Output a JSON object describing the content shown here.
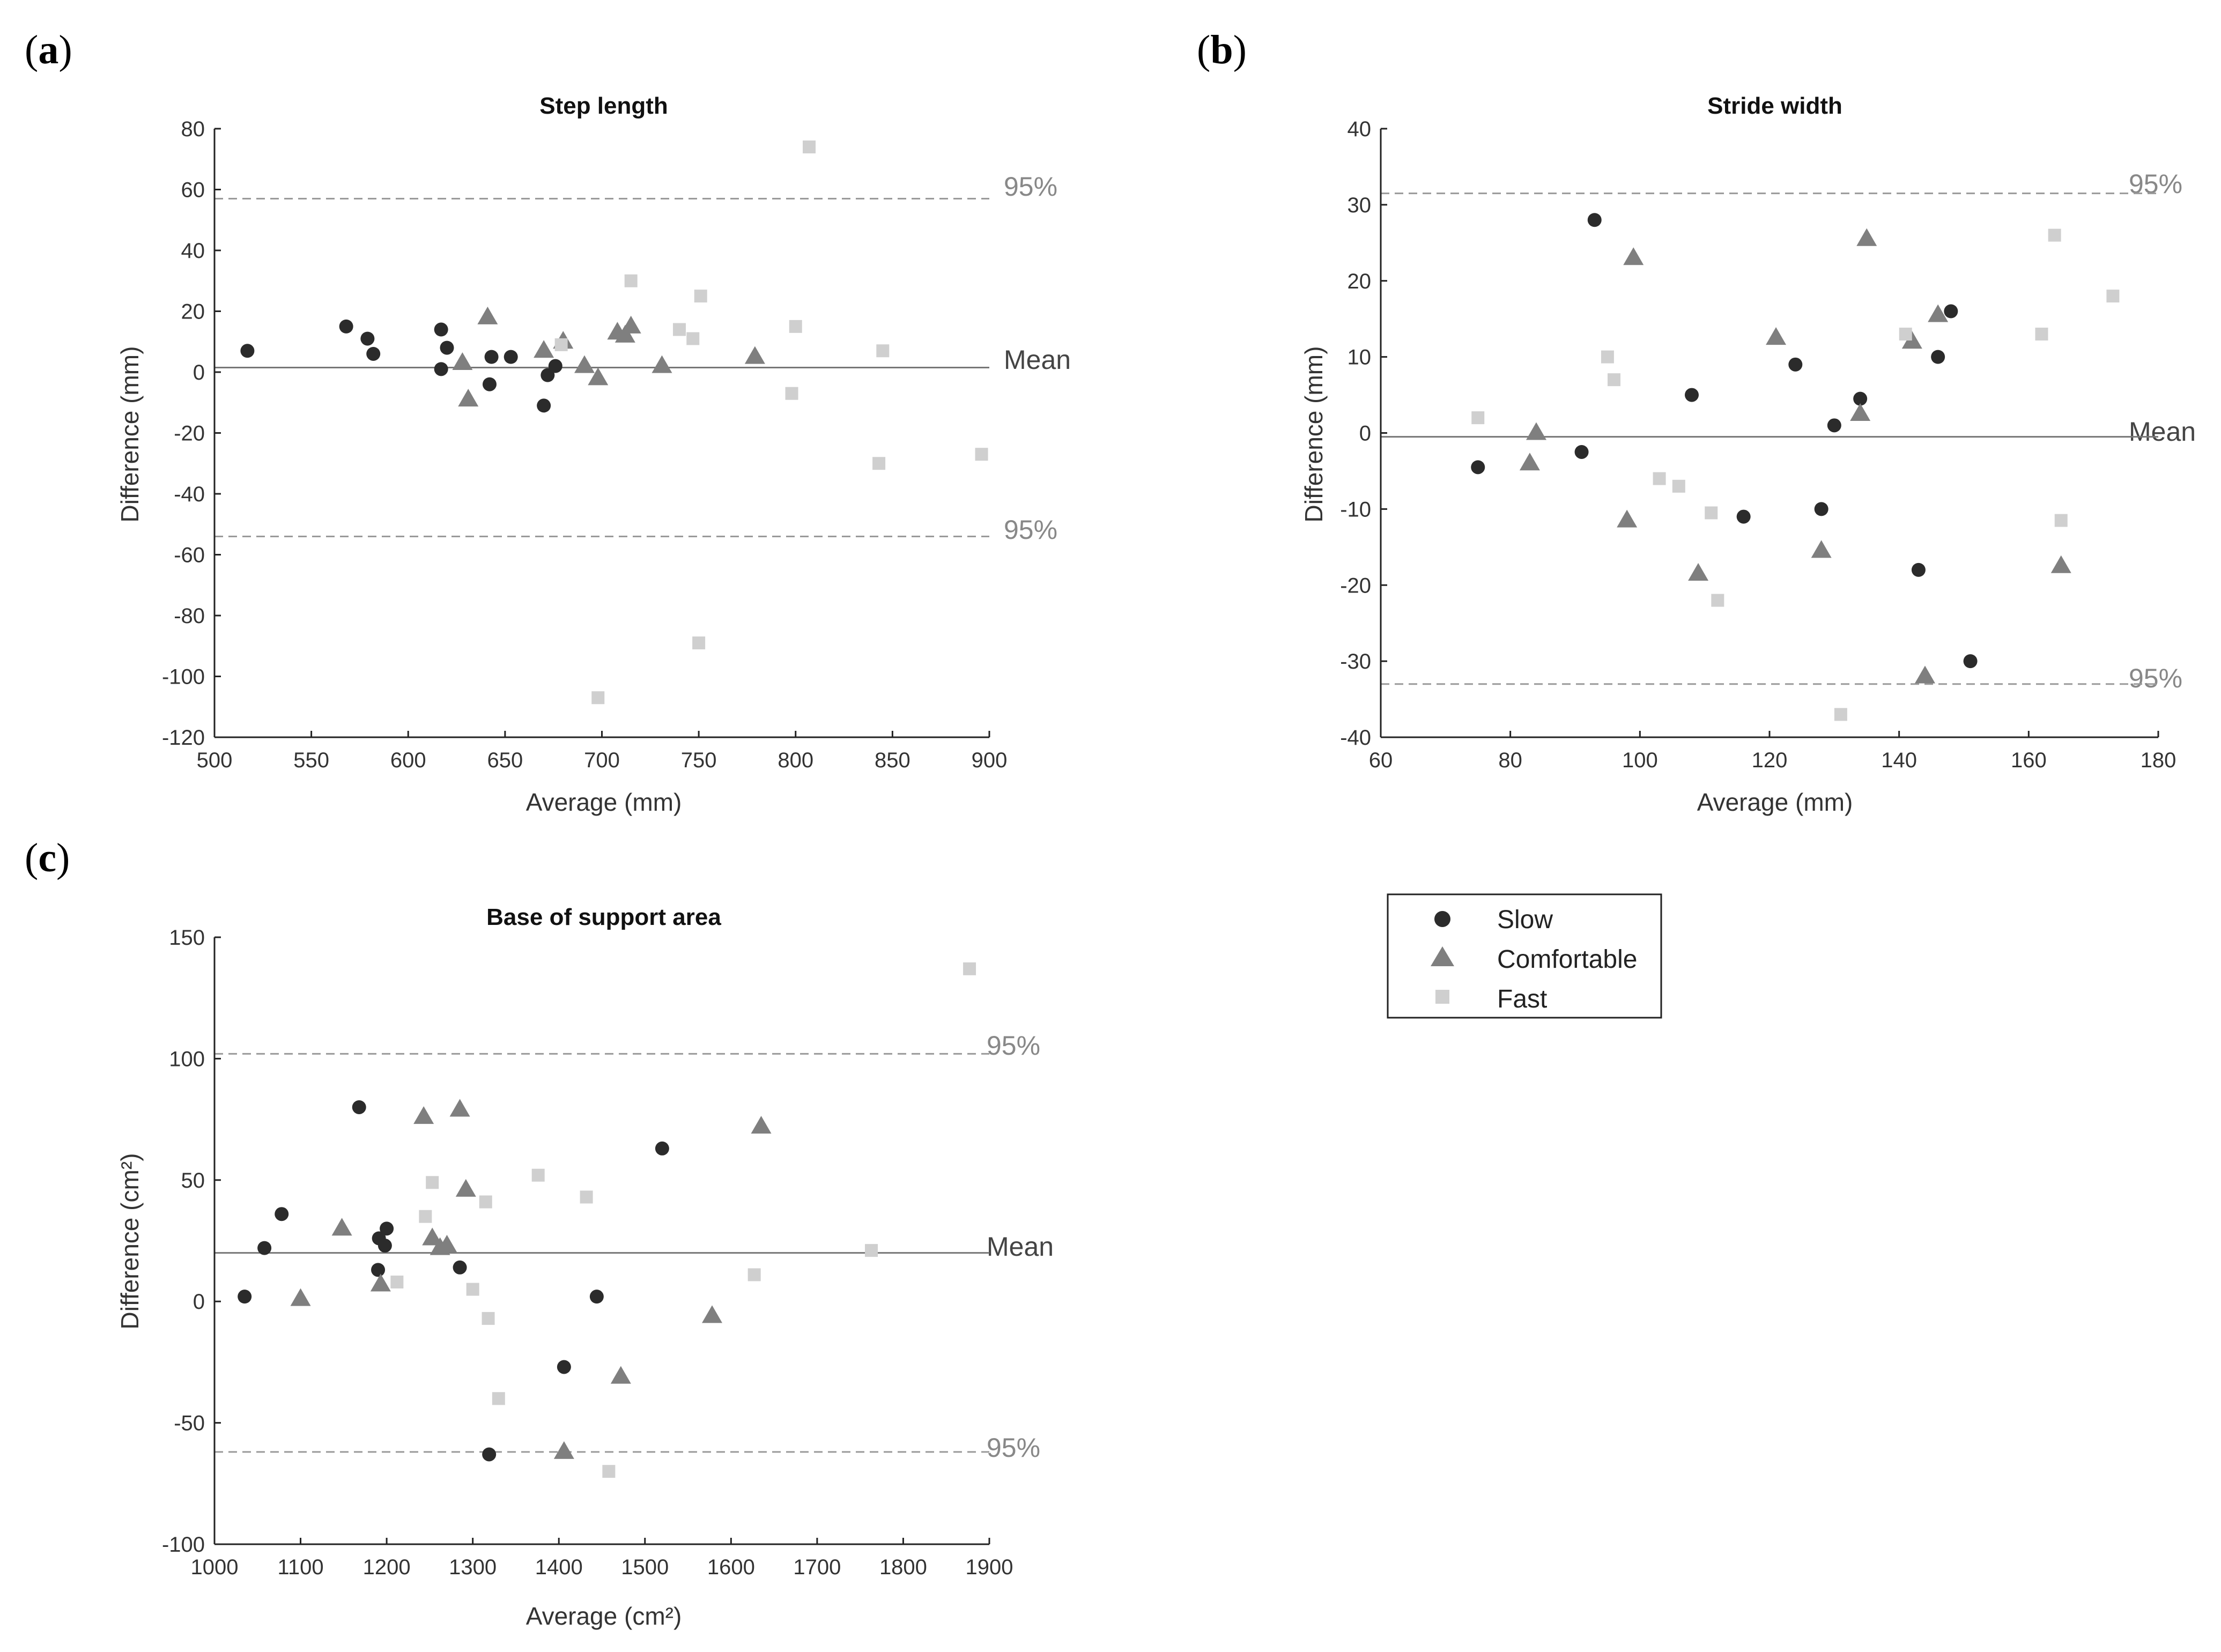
{
  "figure": {
    "panels": [
      {
        "open": "(",
        "letter": "a",
        "close": ")"
      },
      {
        "open": "(",
        "letter": "b",
        "close": ")"
      },
      {
        "open": "(",
        "letter": "c",
        "close": ")"
      }
    ]
  },
  "legend": {
    "items": [
      {
        "label": "Slow",
        "marker": "circle",
        "color": "#2b2b2b"
      },
      {
        "label": "Comfortable",
        "marker": "triangle",
        "color": "#7f7f7f"
      },
      {
        "label": "Fast",
        "marker": "square",
        "color": "#cfcfcf"
      }
    ]
  },
  "colors": {
    "mean_line": "#777777",
    "limit_line": "#9a9a9a",
    "axis": "#222222"
  },
  "chart_data": [
    {
      "type": "scatter",
      "panel": "a",
      "title": "Step length",
      "xlabel": "Average (mm)",
      "ylabel": "Difference (mm)",
      "xlim": [
        500,
        900
      ],
      "ylim": [
        -120,
        80
      ],
      "xticks": [
        500,
        550,
        600,
        650,
        700,
        750,
        800,
        850,
        900
      ],
      "yticks": [
        -120,
        -100,
        -80,
        -60,
        -40,
        -20,
        0,
        20,
        40,
        60,
        80
      ],
      "mean": 1.5,
      "upper_limit": 57,
      "lower_limit": -54,
      "mean_label": "Mean",
      "upper_label": "95%",
      "lower_label": "95%",
      "series": [
        {
          "name": "Slow",
          "points": [
            [
              517,
              7
            ],
            [
              568,
              15
            ],
            [
              579,
              11
            ],
            [
              582,
              6
            ],
            [
              617,
              14
            ],
            [
              617,
              1
            ],
            [
              620,
              8
            ],
            [
              642,
              -4
            ],
            [
              643,
              5
            ],
            [
              653,
              5
            ],
            [
              670,
              -11
            ],
            [
              672,
              -1
            ],
            [
              676,
              2
            ]
          ]
        },
        {
          "name": "Comfortable",
          "points": [
            [
              628,
              3
            ],
            [
              631,
              -9
            ],
            [
              641,
              18
            ],
            [
              670,
              7
            ],
            [
              680,
              10
            ],
            [
              691,
              2
            ],
            [
              698,
              -2
            ],
            [
              708,
              13
            ],
            [
              712,
              12
            ],
            [
              715,
              15
            ],
            [
              731,
              2
            ],
            [
              779,
              5
            ]
          ]
        },
        {
          "name": "Fast",
          "points": [
            [
              679,
              9
            ],
            [
              698,
              -107
            ],
            [
              715,
              30
            ],
            [
              740,
              14
            ],
            [
              747,
              11
            ],
            [
              750,
              -89
            ],
            [
              751,
              25
            ],
            [
              798,
              -7
            ],
            [
              800,
              15
            ],
            [
              807,
              74
            ],
            [
              843,
              -30
            ],
            [
              845,
              7
            ],
            [
              896,
              -27
            ]
          ]
        }
      ]
    },
    {
      "type": "scatter",
      "panel": "b",
      "title": "Stride width",
      "xlabel": "Average (mm)",
      "ylabel": "Difference (mm)",
      "xlim": [
        60,
        180
      ],
      "ylim": [
        -40,
        40
      ],
      "xticks": [
        60,
        80,
        100,
        120,
        140,
        160,
        180
      ],
      "yticks": [
        -40,
        -30,
        -20,
        -10,
        0,
        10,
        20,
        30,
        40
      ],
      "mean": -0.5,
      "upper_limit": 31.5,
      "lower_limit": -33,
      "mean_label": "Mean",
      "upper_label": "95%",
      "lower_label": "95%",
      "series": [
        {
          "name": "Slow",
          "points": [
            [
              75,
              -4.5
            ],
            [
              91,
              -2.5
            ],
            [
              93,
              28
            ],
            [
              108,
              5
            ],
            [
              116,
              -11
            ],
            [
              124,
              9
            ],
            [
              128,
              -10
            ],
            [
              130,
              1
            ],
            [
              134,
              4.5
            ],
            [
              143,
              -18
            ],
            [
              146,
              10
            ],
            [
              148,
              16
            ],
            [
              151,
              -30
            ]
          ]
        },
        {
          "name": "Comfortable",
          "points": [
            [
              83,
              -4
            ],
            [
              84,
              0
            ],
            [
              98,
              -11.5
            ],
            [
              99,
              23
            ],
            [
              109,
              -18.5
            ],
            [
              121,
              12.5
            ],
            [
              128,
              -15.5
            ],
            [
              134,
              2.5
            ],
            [
              135,
              25.5
            ],
            [
              142,
              12
            ],
            [
              144,
              -32
            ],
            [
              146,
              15.5
            ],
            [
              165,
              -17.5
            ]
          ]
        },
        {
          "name": "Fast",
          "points": [
            [
              75,
              2
            ],
            [
              95,
              10
            ],
            [
              96,
              7
            ],
            [
              103,
              -6
            ],
            [
              106,
              -7
            ],
            [
              111,
              -10.5
            ],
            [
              112,
              -22
            ],
            [
              131,
              -37
            ],
            [
              141,
              13
            ],
            [
              162,
              13
            ],
            [
              164,
              26
            ],
            [
              165,
              -11.5
            ],
            [
              173,
              18
            ]
          ]
        }
      ]
    },
    {
      "type": "scatter",
      "panel": "c",
      "title": "Base of support area",
      "xlabel": "Average (cm²)",
      "ylabel": "Difference (cm²)",
      "xlim": [
        1000,
        1900
      ],
      "ylim": [
        -100,
        150
      ],
      "xticks": [
        1000,
        1100,
        1200,
        1300,
        1400,
        1500,
        1600,
        1700,
        1800,
        1900
      ],
      "yticks": [
        -100,
        -50,
        0,
        50,
        100,
        150
      ],
      "mean": 20,
      "upper_limit": 102,
      "lower_limit": -62,
      "mean_label": "Mean",
      "upper_label": "95%",
      "lower_label": "95%",
      "series": [
        {
          "name": "Slow",
          "points": [
            [
              1035,
              2
            ],
            [
              1058,
              22
            ],
            [
              1078,
              36
            ],
            [
              1168,
              80
            ],
            [
              1190,
              13
            ],
            [
              1191,
              26
            ],
            [
              1198,
              23
            ],
            [
              1200,
              30
            ],
            [
              1285,
              14
            ],
            [
              1319,
              -63
            ],
            [
              1406,
              -27
            ],
            [
              1444,
              2
            ],
            [
              1520,
              63
            ]
          ]
        },
        {
          "name": "Comfortable",
          "points": [
            [
              1100,
              1
            ],
            [
              1148,
              30
            ],
            [
              1193,
              7
            ],
            [
              1243,
              76
            ],
            [
              1253,
              26
            ],
            [
              1262,
              22
            ],
            [
              1270,
              23
            ],
            [
              1285,
              79
            ],
            [
              1292,
              46
            ],
            [
              1406,
              -62
            ],
            [
              1472,
              -31
            ],
            [
              1578,
              -6
            ],
            [
              1635,
              72
            ]
          ]
        },
        {
          "name": "Fast",
          "points": [
            [
              1212,
              8
            ],
            [
              1245,
              35
            ],
            [
              1253,
              49
            ],
            [
              1300,
              5
            ],
            [
              1315,
              41
            ],
            [
              1318,
              -7
            ],
            [
              1330,
              -40
            ],
            [
              1376,
              52
            ],
            [
              1432,
              43
            ],
            [
              1458,
              -70
            ],
            [
              1627,
              11
            ],
            [
              1763,
              21
            ],
            [
              1877,
              137
            ]
          ]
        }
      ]
    }
  ]
}
